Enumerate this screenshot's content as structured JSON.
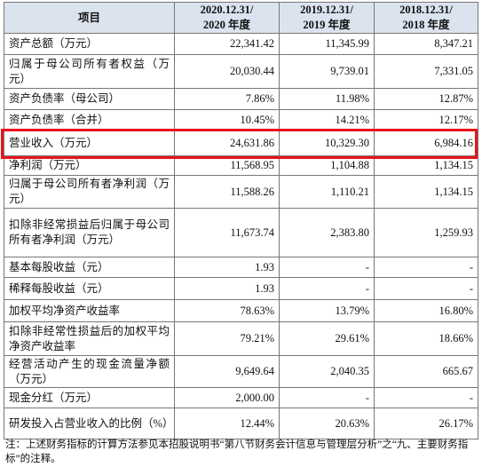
{
  "table": {
    "header": [
      "项目",
      "2020.12.31/\n2020 年度",
      "2019.12.31/\n2019 年度",
      "2018.12.31/\n2018 年度"
    ],
    "rows": [
      [
        "资产总额（万元）",
        "22,341.42",
        "11,345.99",
        "8,347.21"
      ],
      [
        "归属于母公司所有者权益（万元）",
        "20,030.44",
        "9,739.01",
        "7,331.05"
      ],
      [
        "资产负债率（母公司）",
        "7.86%",
        "11.98%",
        "12.87%"
      ],
      [
        "资产负债率（合并）",
        "10.45%",
        "14.21%",
        "12.17%"
      ],
      [
        "营业收入（万元）",
        "24,631.86",
        "10,329.30",
        "6,984.16"
      ],
      [
        "净利润（万元）",
        "11,568.95",
        "1,104.88",
        "1,134.15"
      ],
      [
        "归属于母公司所有者净利润（万元）",
        "11,588.26",
        "1,110.21",
        "1,134.15"
      ],
      [
        "扣除非经常损益后归属于母公司所有者净利润（万元）",
        "11,673.74",
        "2,383.80",
        "1,259.93"
      ],
      [
        "基本每股收益（元）",
        "1.93",
        "-",
        "-"
      ],
      [
        "稀释每股收益（元）",
        "1.93",
        "-",
        "-"
      ],
      [
        "加权平均净资产收益率",
        "78.63%",
        "13.79%",
        "16.80%"
      ],
      [
        "扣除非经常性损益后的加权平均净资产收益率",
        "79.21%",
        "29.61%",
        "18.66%"
      ],
      [
        "经营活动产生的现金流量净额（万元）",
        "9,649.64",
        "2,040.35",
        "665.67"
      ],
      [
        "现金分红（万元）",
        "2,000.00",
        "-",
        "-"
      ],
      [
        "研发投入占营业收入的比例（%）",
        "12.44%",
        "20.63%",
        "26.17%"
      ]
    ]
  },
  "note": "注：上述财务指标的计算方法参见本招股说明书“第八节财务会计信息与管理层分析”之“九、主要财务指标”的注释。"
}
